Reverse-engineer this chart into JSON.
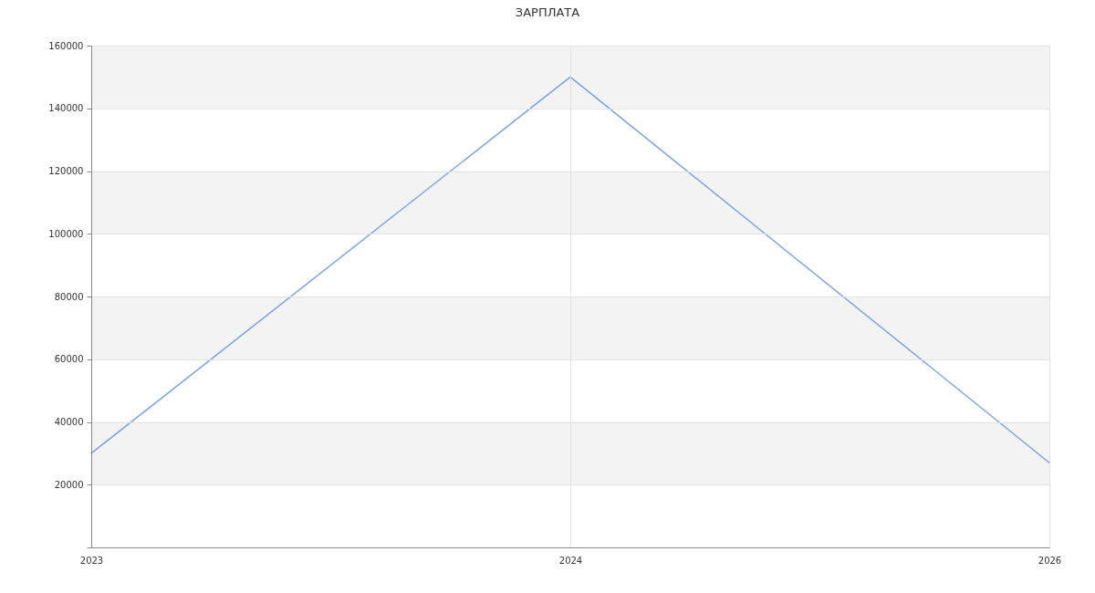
{
  "chart_data": {
    "type": "line",
    "title": "ЗАРПЛАТА",
    "categories": [
      "2023",
      "2024",
      "2026"
    ],
    "values": [
      30000,
      150000,
      27000
    ],
    "color": "#6e9cf0",
    "ylim": [
      0,
      160000
    ],
    "yticks": [
      {
        "value": 0,
        "label": null
      },
      20000,
      40000,
      60000,
      80000,
      100000,
      120000,
      140000,
      160000
    ],
    "grid": true
  }
}
